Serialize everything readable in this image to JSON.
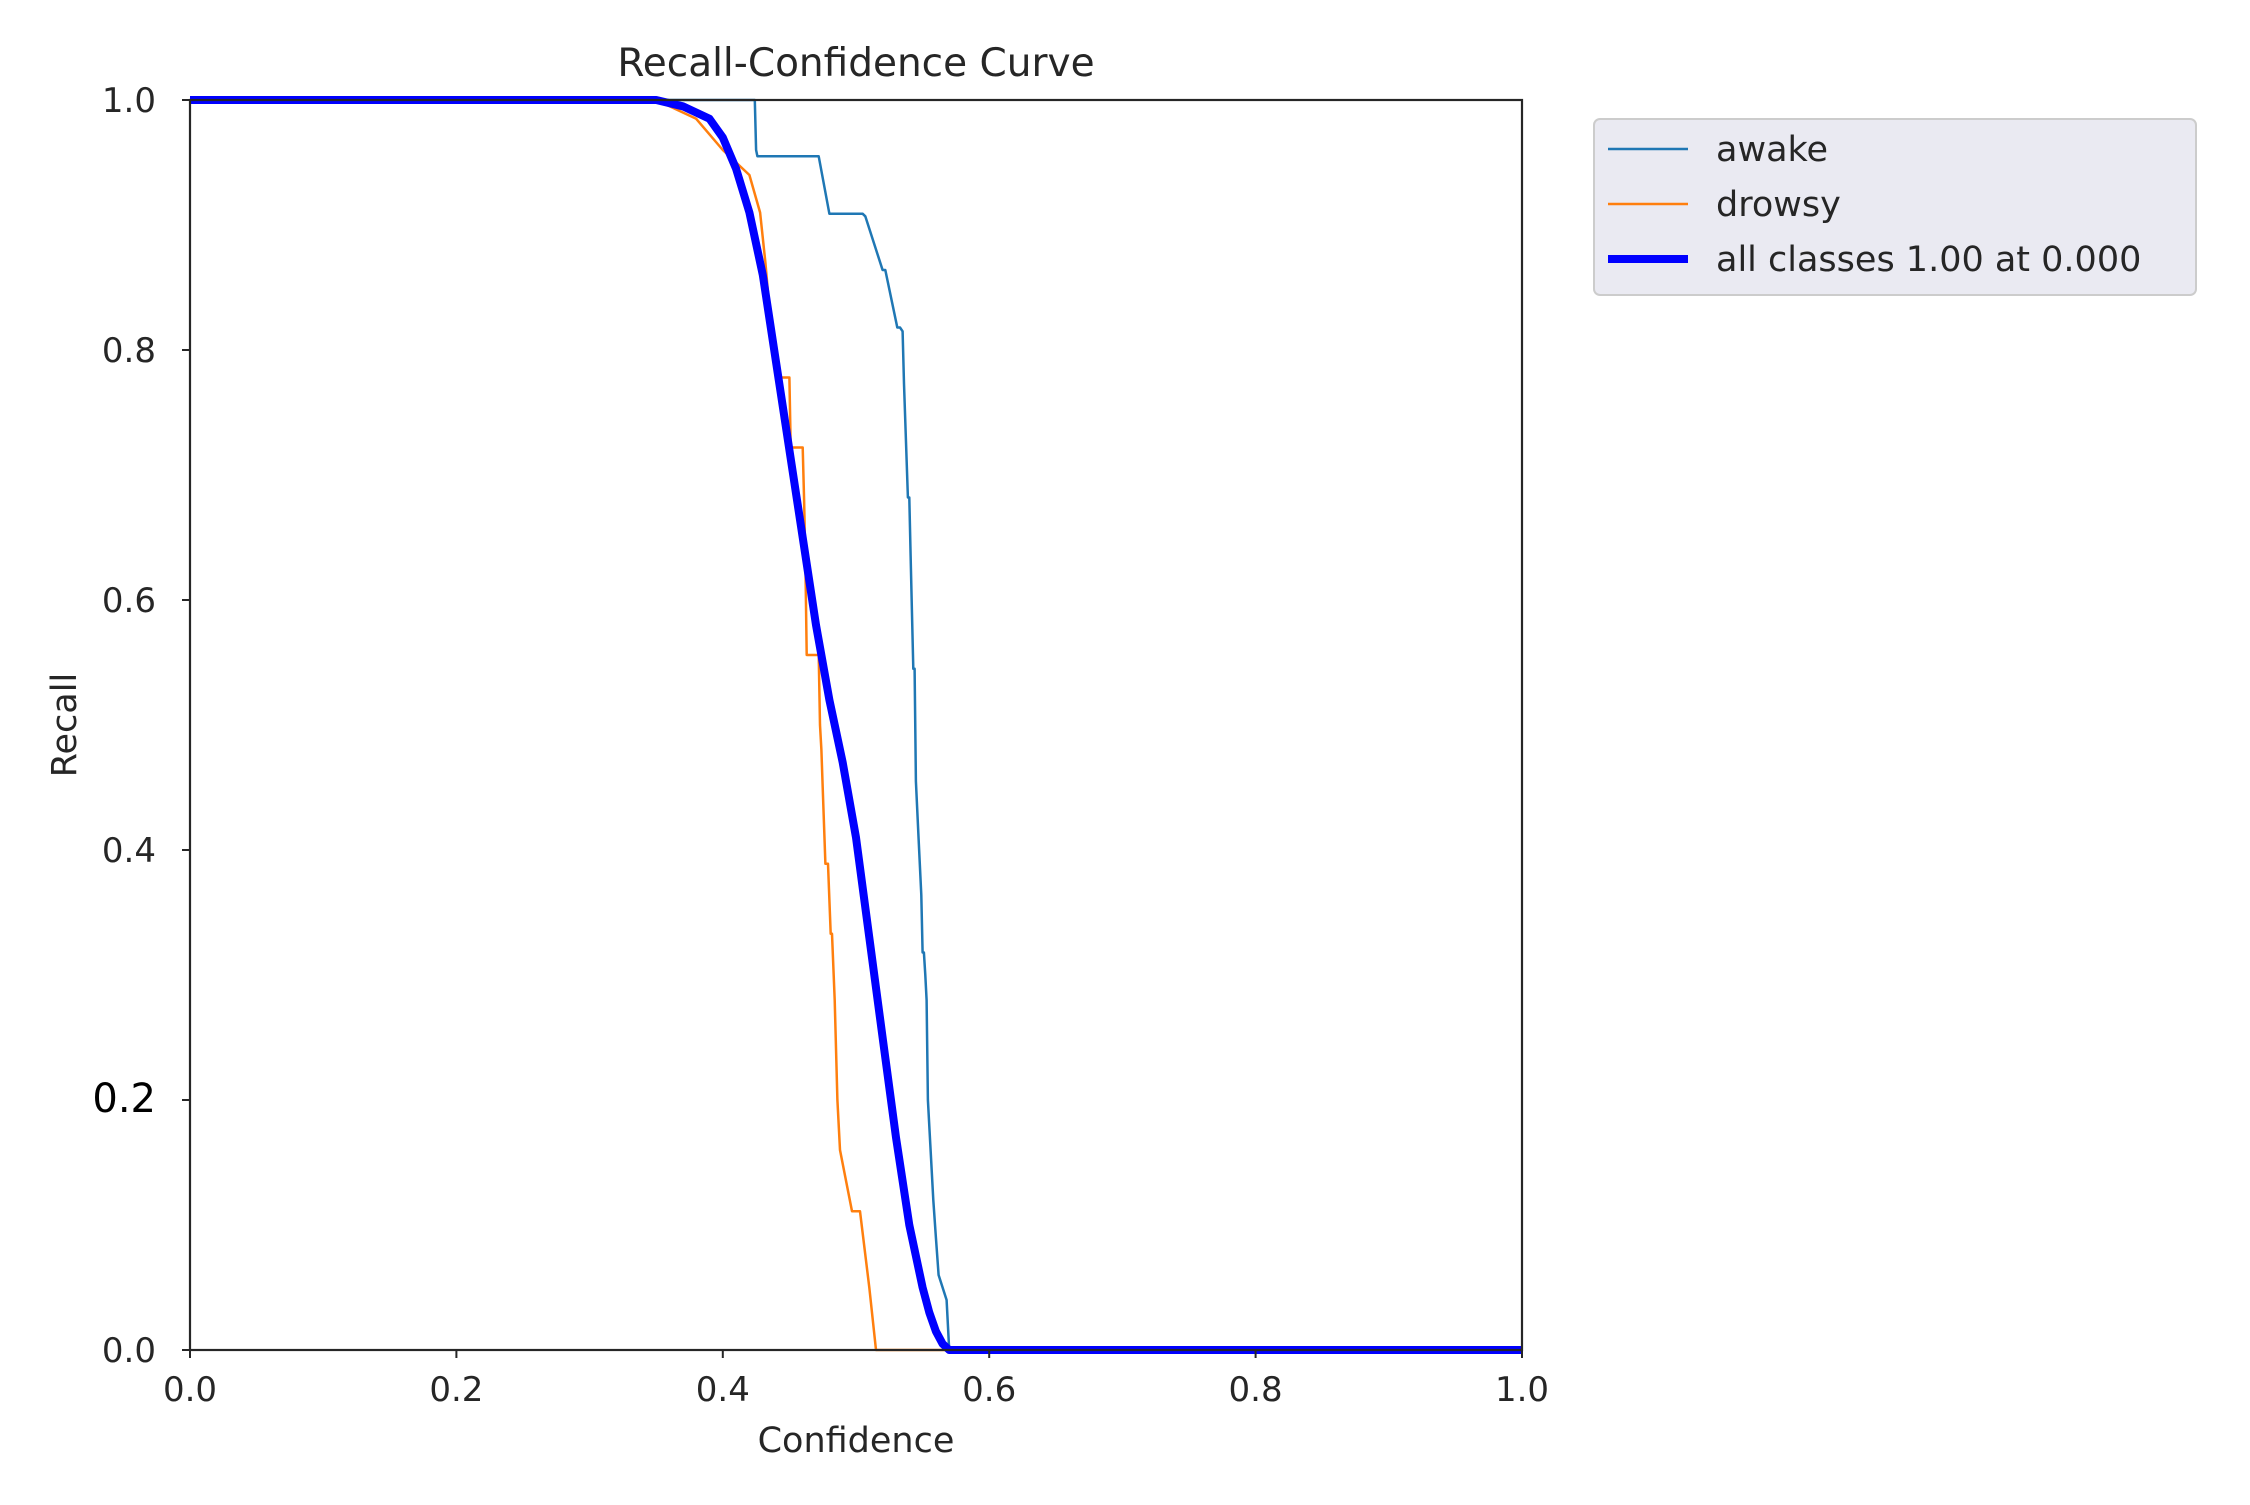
{
  "chart_data": {
    "type": "line",
    "title": "Recall-Confidence Curve",
    "xlabel": "Confidence",
    "ylabel": "Recall",
    "xlim": [
      0,
      1
    ],
    "ylim": [
      0,
      1
    ],
    "xticks": [
      "0.0",
      "0.2",
      "0.4",
      "0.6",
      "0.8",
      "1.0"
    ],
    "yticks": [
      "0.0",
      "0.2",
      "0.4",
      "0.6",
      "0.8",
      "1.0"
    ],
    "grid": false,
    "legend_position": "outside-top-right",
    "series": [
      {
        "name": "awake",
        "color": "#1f77b4",
        "x": [
          0.0,
          0.35,
          0.424,
          0.425,
          0.426,
          0.44,
          0.47,
          0.472,
          0.48,
          0.492,
          0.505,
          0.507,
          0.52,
          0.521,
          0.522,
          0.531,
          0.533,
          0.535,
          0.536,
          0.539,
          0.54,
          0.541,
          0.542,
          0.543,
          0.544,
          0.545,
          0.547,
          0.549,
          0.55,
          0.551,
          0.552,
          0.553,
          0.554,
          0.556,
          0.558,
          0.56,
          0.562,
          0.568,
          0.569,
          0.57,
          0.6,
          1.0
        ],
        "y": [
          1.0,
          1.0,
          1.0,
          0.96,
          0.955,
          0.955,
          0.955,
          0.955,
          0.909,
          0.909,
          0.909,
          0.907,
          0.864,
          0.864,
          0.864,
          0.818,
          0.818,
          0.815,
          0.773,
          0.682,
          0.682,
          0.636,
          0.592,
          0.545,
          0.545,
          0.455,
          0.409,
          0.364,
          0.318,
          0.318,
          0.3,
          0.28,
          0.2,
          0.16,
          0.12,
          0.09,
          0.06,
          0.04,
          0.02,
          0.0,
          0.0,
          0.0
        ]
      },
      {
        "name": "drowsy",
        "color": "#ff7f0e",
        "x": [
          0.0,
          0.35,
          0.38,
          0.4,
          0.42,
          0.428,
          0.432,
          0.436,
          0.438,
          0.44,
          0.442,
          0.444,
          0.45,
          0.451,
          0.452,
          0.46,
          0.461,
          0.462,
          0.463,
          0.464,
          0.472,
          0.473,
          0.474,
          0.475,
          0.477,
          0.479,
          0.481,
          0.482,
          0.484,
          0.486,
          0.488,
          0.497,
          0.5,
          0.503,
          0.51,
          0.515,
          0.52,
          1.0
        ],
        "y": [
          1.0,
          1.0,
          0.985,
          0.96,
          0.94,
          0.91,
          0.87,
          0.82,
          0.8,
          0.778,
          0.778,
          0.778,
          0.778,
          0.722,
          0.722,
          0.722,
          0.68,
          0.63,
          0.556,
          0.556,
          0.556,
          0.5,
          0.48,
          0.45,
          0.389,
          0.389,
          0.333,
          0.333,
          0.28,
          0.2,
          0.16,
          0.111,
          0.111,
          0.111,
          0.05,
          0.0,
          0.0,
          0.0
        ]
      },
      {
        "name": "all classes 1.00 at 0.000",
        "color": "#0000ff",
        "x": [
          0.0,
          0.3,
          0.35,
          0.37,
          0.39,
          0.4,
          0.41,
          0.42,
          0.43,
          0.44,
          0.45,
          0.46,
          0.47,
          0.48,
          0.49,
          0.5,
          0.51,
          0.52,
          0.53,
          0.54,
          0.55,
          0.555,
          0.56,
          0.565,
          0.57,
          0.578,
          0.59,
          0.6,
          1.0
        ],
        "y": [
          1.0,
          1.0,
          1.0,
          0.995,
          0.985,
          0.97,
          0.945,
          0.91,
          0.86,
          0.79,
          0.72,
          0.65,
          0.58,
          0.52,
          0.47,
          0.41,
          0.33,
          0.25,
          0.17,
          0.1,
          0.05,
          0.03,
          0.015,
          0.005,
          0.0,
          0.0,
          0.0,
          0.0,
          0.0
        ]
      }
    ]
  }
}
